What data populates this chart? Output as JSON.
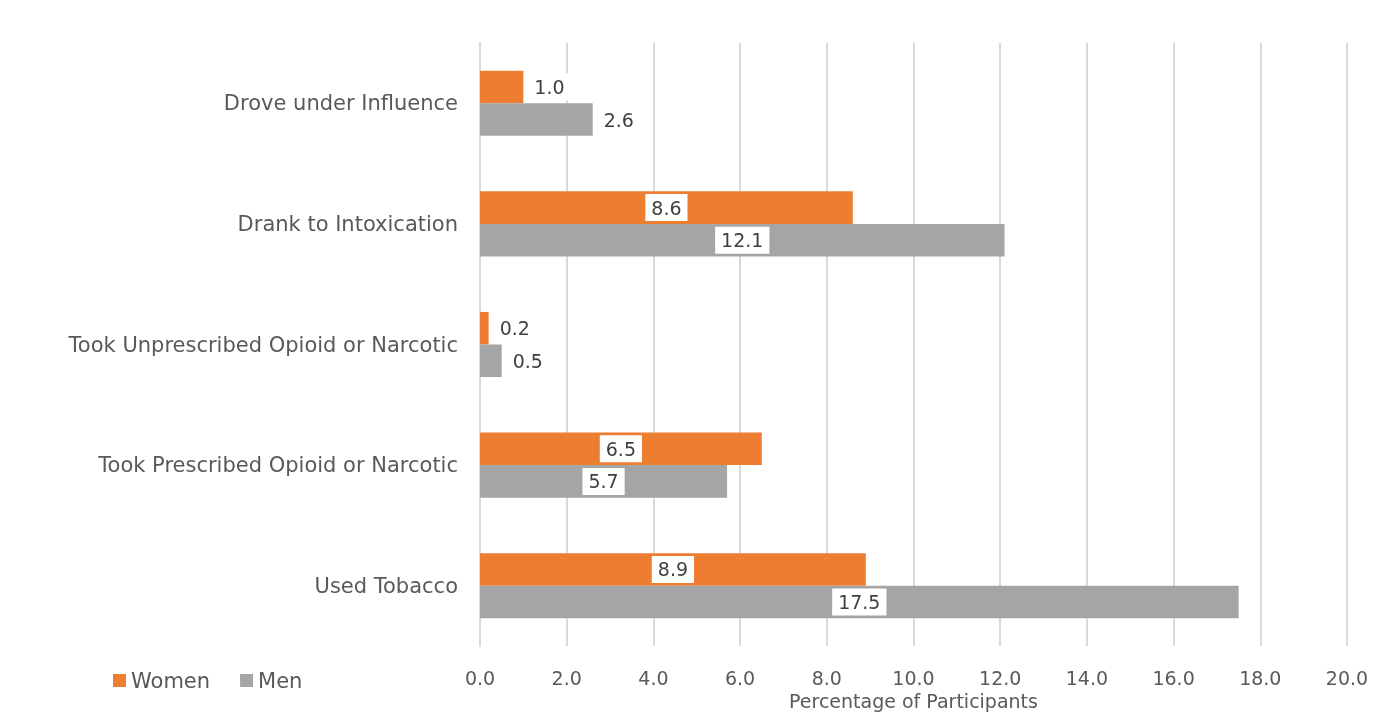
{
  "chart_data": {
    "type": "bar",
    "orientation": "horizontal",
    "categories": [
      "Drove under Influence",
      "Drank to Intoxication",
      "Took Unprescribed Opioid or Narcotic",
      "Took Prescribed Opioid or Narcotic",
      "Used Tobacco"
    ],
    "series": [
      {
        "name": "Women",
        "color": "#ed7d31",
        "values": [
          1.0,
          8.6,
          0.2,
          6.5,
          8.9
        ],
        "value_labels": [
          "1.0",
          "8.6",
          "0.2",
          "6.5",
          "8.9"
        ]
      },
      {
        "name": "Men",
        "color": "#a5a5a5",
        "values": [
          2.6,
          12.1,
          0.5,
          5.7,
          17.5
        ],
        "value_labels": [
          "2.6",
          "12.1",
          "0.5",
          "5.7",
          "17.5"
        ]
      }
    ],
    "xlabel": "Percentage of Participants",
    "xlim": [
      0,
      20
    ],
    "xticks": [
      {
        "value": 0,
        "label": "0.0"
      },
      {
        "value": 2,
        "label": "2.0"
      },
      {
        "value": 4,
        "label": "4.0"
      },
      {
        "value": 6,
        "label": "6.0"
      },
      {
        "value": 8,
        "label": "8.0"
      },
      {
        "value": 10,
        "label": "10.0"
      },
      {
        "value": 12,
        "label": "12.0"
      },
      {
        "value": 14,
        "label": "14.0"
      },
      {
        "value": 16,
        "label": "16.0"
      },
      {
        "value": 18,
        "label": "18.0"
      },
      {
        "value": 20,
        "label": "20.0"
      }
    ],
    "grid": "x",
    "legend": "bottom left"
  }
}
